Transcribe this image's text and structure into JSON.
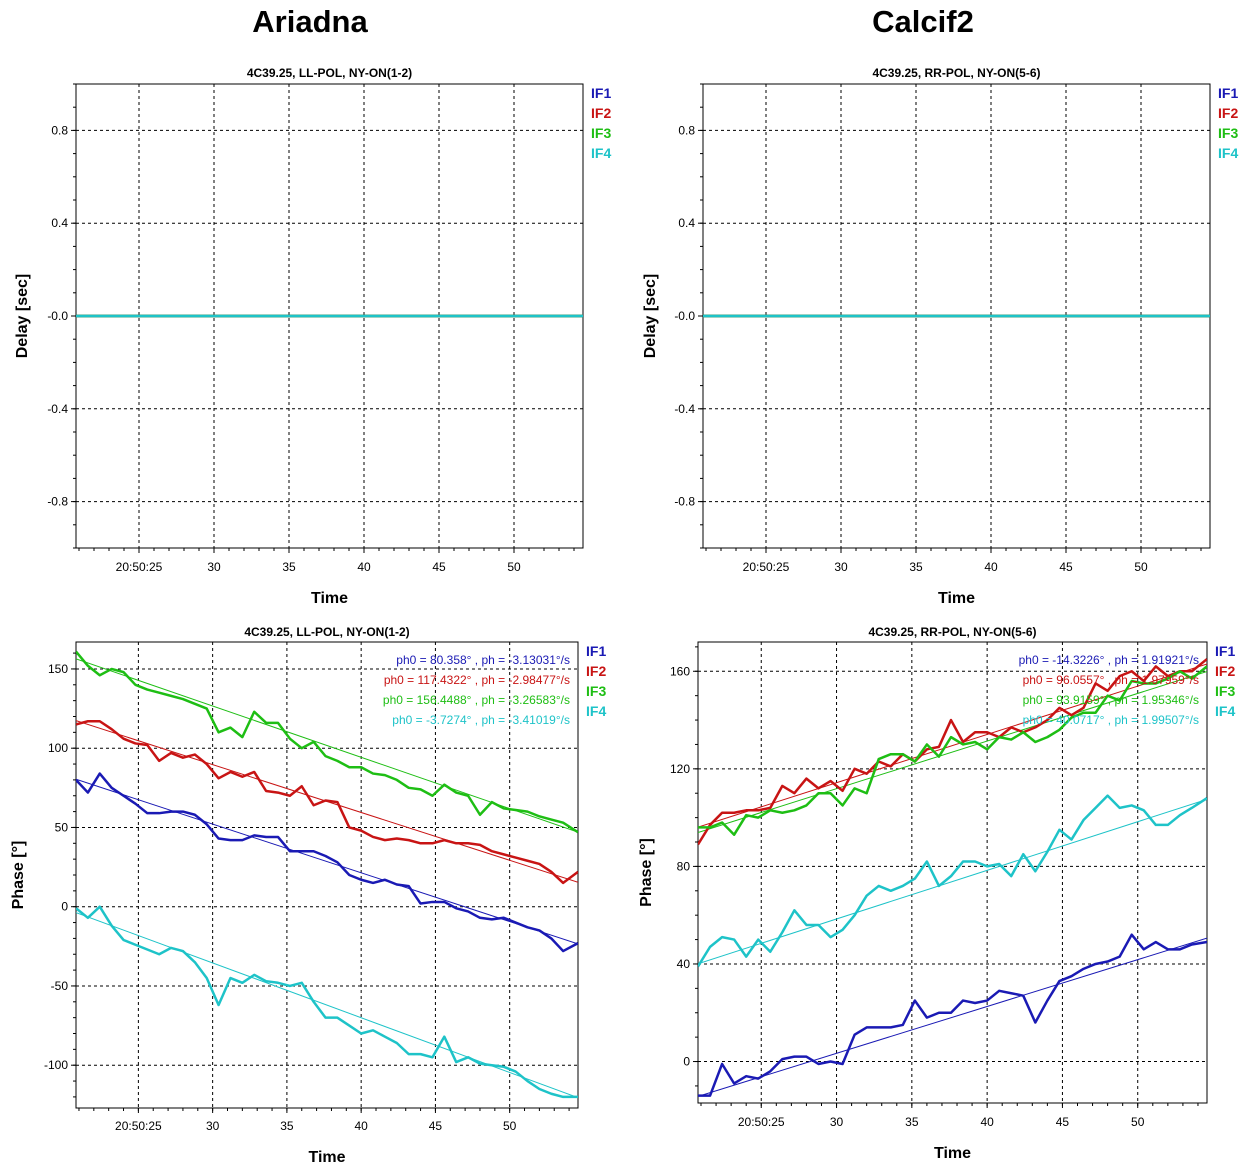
{
  "columns": [
    "Ariadna",
    "Calcif2"
  ],
  "colors": {
    "IF1": "#1a1ab4",
    "IF2": "#c81414",
    "IF3": "#1ebe14",
    "IF4": "#1ec3c8",
    "grid": "#000000"
  },
  "chart_data": [
    {
      "type": "line",
      "title": "4C39.25, LL-POL,  NY-ON(1-2)",
      "xlabel": "Time",
      "ylabel": "Delay [sec]",
      "xlim": [
        20.8,
        54.6
      ],
      "ylim": [
        -1.0,
        1.0
      ],
      "x_ticks": [
        25,
        30,
        35,
        40,
        45,
        50
      ],
      "x_tick_labels": [
        "20:50:25",
        "30",
        "35",
        "40",
        "45",
        "50"
      ],
      "y_ticks": [
        0.8,
        0.4,
        0.0,
        -0.4,
        -0.8
      ],
      "y_tick_labels": [
        "0.8",
        "0.4",
        "-0.0",
        "-0.4",
        "-0.8"
      ],
      "legend": [
        "IF1",
        "IF2",
        "IF3",
        "IF4"
      ],
      "fit_labels": [],
      "series": [
        {
          "name": "IF1",
          "x": [
            20.8,
            54.6
          ],
          "y": [
            0.0,
            0.0
          ]
        },
        {
          "name": "IF2",
          "x": [
            20.8,
            54.6
          ],
          "y": [
            0.0,
            0.0
          ]
        },
        {
          "name": "IF3",
          "x": [
            20.8,
            54.6
          ],
          "y": [
            0.0,
            0.0
          ]
        },
        {
          "name": "IF4",
          "x": [
            20.8,
            54.6
          ],
          "y": [
            0.0,
            0.0
          ]
        }
      ],
      "fits": []
    },
    {
      "type": "line",
      "title": "4C39.25, RR-POL,  NY-ON(5-6)",
      "xlabel": "Time",
      "ylabel": "Delay [sec]",
      "xlim": [
        20.8,
        54.6
      ],
      "ylim": [
        -1.0,
        1.0
      ],
      "x_ticks": [
        25,
        30,
        35,
        40,
        45,
        50
      ],
      "x_tick_labels": [
        "20:50:25",
        "30",
        "35",
        "40",
        "45",
        "50"
      ],
      "y_ticks": [
        0.8,
        0.4,
        0.0,
        -0.4,
        -0.8
      ],
      "y_tick_labels": [
        "0.8",
        "0.4",
        "-0.0",
        "-0.4",
        "-0.8"
      ],
      "legend": [
        "IF1",
        "IF2",
        "IF3",
        "IF4"
      ],
      "fit_labels": [],
      "series": [
        {
          "name": "IF1",
          "x": [
            20.8,
            54.6
          ],
          "y": [
            0.0,
            0.0
          ]
        },
        {
          "name": "IF2",
          "x": [
            20.8,
            54.6
          ],
          "y": [
            0.0,
            0.0
          ]
        },
        {
          "name": "IF3",
          "x": [
            20.8,
            54.6
          ],
          "y": [
            0.0,
            0.0
          ]
        },
        {
          "name": "IF4",
          "x": [
            20.8,
            54.6
          ],
          "y": [
            0.0,
            0.0
          ]
        }
      ],
      "fits": []
    },
    {
      "type": "line",
      "title": "4C39.25, LL-POL,  NY-ON(1-2)",
      "xlabel": "Time",
      "ylabel": "Phase [°]",
      "xlim": [
        20.8,
        54.6
      ],
      "ylim": [
        -127,
        167
      ],
      "x_ticks": [
        25,
        30,
        35,
        40,
        45,
        50
      ],
      "x_tick_labels": [
        "20:50:25",
        "30",
        "35",
        "40",
        "45",
        "50"
      ],
      "y_ticks": [
        150,
        100,
        50,
        0,
        -50,
        -100
      ],
      "y_tick_labels": [
        "150",
        "100",
        "50",
        "0",
        "-50",
        "-100"
      ],
      "legend": [
        "IF1",
        "IF2",
        "IF3",
        "IF4"
      ],
      "fit_labels": [
        "ph0 = 80.358° , ph = -3.13031°/s",
        "ph0 = 117.4322° , ph = -2.98477°/s",
        "ph0 = 156.4488° , ph = -3.26583°/s",
        "ph0 = -3.7274° , ph = -3.41019°/s"
      ],
      "series": [
        {
          "name": "IF1",
          "x": [
            20.8,
            21.6,
            22.4,
            23.2,
            24.0,
            24.8,
            25.6,
            26.4,
            27.2,
            28.0,
            28.8,
            29.6,
            30.4,
            31.2,
            32.0,
            32.8,
            33.6,
            34.4,
            35.2,
            36.0,
            36.8,
            37.6,
            38.4,
            39.2,
            40.0,
            40.8,
            41.6,
            42.4,
            43.2,
            44.0,
            44.8,
            45.6,
            46.4,
            47.2,
            48.0,
            48.8,
            49.6,
            50.4,
            51.2,
            52.0,
            52.8,
            53.6,
            54.6
          ],
          "y": [
            80,
            72,
            84,
            75,
            70,
            65,
            59,
            59,
            60,
            60,
            58,
            52,
            43,
            42,
            42,
            45,
            44,
            44,
            35,
            35,
            35,
            32,
            28,
            20,
            17,
            15,
            17,
            14,
            13,
            2,
            3,
            3,
            -1,
            -3,
            -7,
            -8,
            -7,
            -10,
            -13,
            -15,
            -20,
            -28,
            -23
          ]
        },
        {
          "name": "IF2",
          "x": [
            20.8,
            21.6,
            22.4,
            23.2,
            24.0,
            24.8,
            25.6,
            26.4,
            27.2,
            28.0,
            28.8,
            29.6,
            30.4,
            31.2,
            32.0,
            32.8,
            33.6,
            34.4,
            35.2,
            36.0,
            36.8,
            37.6,
            38.4,
            39.2,
            40.0,
            40.8,
            41.6,
            42.4,
            43.2,
            44.0,
            44.8,
            45.6,
            46.4,
            47.2,
            48.0,
            48.8,
            49.6,
            50.4,
            51.2,
            52.0,
            52.8,
            53.6,
            54.6
          ],
          "y": [
            115,
            117,
            117,
            112,
            106,
            103,
            102,
            92,
            97,
            94,
            96,
            90,
            81,
            85,
            82,
            85,
            73,
            72,
            70,
            76,
            64,
            67,
            66,
            50,
            48,
            44,
            42,
            43,
            42,
            40,
            40,
            42,
            40,
            40,
            39,
            35,
            33,
            31,
            29,
            27,
            22,
            15,
            22
          ]
        },
        {
          "name": "IF3",
          "x": [
            20.8,
            21.6,
            22.4,
            23.2,
            24.0,
            24.8,
            25.6,
            26.4,
            27.2,
            28.0,
            28.8,
            29.6,
            30.4,
            31.2,
            32.0,
            32.8,
            33.6,
            34.4,
            35.2,
            36.0,
            36.8,
            37.6,
            38.4,
            39.2,
            40.0,
            40.8,
            41.6,
            42.4,
            43.2,
            44.0,
            44.8,
            45.6,
            46.4,
            47.2,
            48.0,
            48.8,
            49.6,
            50.4,
            51.2,
            52.0,
            52.8,
            53.6,
            54.6
          ],
          "y": [
            161,
            152,
            146,
            150,
            148,
            140,
            137,
            135,
            133,
            131,
            128,
            125,
            110,
            113,
            107,
            123,
            116,
            116,
            106,
            100,
            104,
            95,
            92,
            88,
            88,
            84,
            83,
            80,
            75,
            74,
            70,
            77,
            72,
            70,
            58,
            66,
            62,
            61,
            60,
            57,
            55,
            53,
            47
          ]
        },
        {
          "name": "IF4",
          "x": [
            20.8,
            21.6,
            22.4,
            23.2,
            24.0,
            24.8,
            25.6,
            26.4,
            27.2,
            28.0,
            28.8,
            29.6,
            30.4,
            31.2,
            32.0,
            32.8,
            33.6,
            34.4,
            35.2,
            36.0,
            36.8,
            37.6,
            38.4,
            39.2,
            40.0,
            40.8,
            41.6,
            42.4,
            43.2,
            44.0,
            44.8,
            45.6,
            46.4,
            47.2,
            48.0,
            48.8,
            49.6,
            50.4,
            51.2,
            52.0,
            52.8,
            53.6,
            54.6
          ],
          "y": [
            -1,
            -7,
            0,
            -12,
            -21,
            -24,
            -27,
            -30,
            -26,
            -28,
            -35,
            -45,
            -62,
            -45,
            -48,
            -43,
            -47,
            -48,
            -50,
            -48,
            -60,
            -70,
            -70,
            -75,
            -80,
            -78,
            -82,
            -86,
            -93,
            -93,
            -95,
            -82,
            -98,
            -95,
            -99,
            -100,
            -101,
            -104,
            -110,
            -115,
            -118,
            -120,
            -120
          ]
        }
      ],
      "fits": [
        {
          "name": "IF1",
          "x": [
            20.8,
            54.6
          ],
          "y": [
            80.4,
            -23.5
          ]
        },
        {
          "name": "IF2",
          "x": [
            20.8,
            54.6
          ],
          "y": [
            117.4,
            15.4
          ]
        },
        {
          "name": "IF3",
          "x": [
            20.8,
            54.6
          ],
          "y": [
            156.4,
            47.0
          ]
        },
        {
          "name": "IF4",
          "x": [
            20.8,
            54.6
          ],
          "y": [
            -3.7,
            -120.5
          ]
        }
      ]
    },
    {
      "type": "line",
      "title": "4C39.25, RR-POL,  NY-ON(5-6)",
      "xlabel": "Time",
      "ylabel": "Phase [°]",
      "xlim": [
        20.8,
        54.6
      ],
      "ylim": [
        -17,
        172
      ],
      "x_ticks": [
        25,
        30,
        35,
        40,
        45,
        50
      ],
      "x_tick_labels": [
        "20:50:25",
        "30",
        "35",
        "40",
        "45",
        "50"
      ],
      "y_ticks": [
        160,
        120,
        80,
        40,
        0
      ],
      "y_tick_labels": [
        "160",
        "120",
        "80",
        "40",
        "0"
      ],
      "legend": [
        "IF1",
        "IF2",
        "IF3",
        "IF4"
      ],
      "fit_labels": [
        "ph0 = -14.3226° , ph = 1.91921°/s",
        "ph0 = 96.0557° , ph = 1.97959°/s",
        "ph0 = 93.9159° , ph = 1.95346°/s",
        "ph0 = 40.0717° , ph = 1.99507°/s"
      ],
      "series": [
        {
          "name": "IF1",
          "x": [
            20.8,
            21.6,
            22.4,
            23.2,
            24.0,
            24.8,
            25.6,
            26.4,
            27.2,
            28.0,
            28.8,
            29.6,
            30.4,
            31.2,
            32.0,
            32.8,
            33.6,
            34.4,
            35.2,
            36.0,
            36.8,
            37.6,
            38.4,
            39.2,
            40.0,
            40.8,
            41.6,
            42.4,
            43.2,
            44.0,
            44.8,
            45.6,
            46.4,
            47.2,
            48.0,
            48.8,
            49.6,
            50.4,
            51.2,
            52.0,
            52.8,
            53.6,
            54.6
          ],
          "y": [
            -14,
            -14,
            -1,
            -9,
            -6,
            -7,
            -4,
            1,
            2,
            2,
            -1,
            0,
            -1,
            11,
            14,
            14,
            14,
            15,
            25,
            18,
            20,
            20,
            25,
            24,
            25,
            29,
            28,
            27,
            16,
            25,
            33,
            35,
            38,
            40,
            41,
            43,
            52,
            46,
            49,
            46,
            46,
            48,
            49
          ]
        },
        {
          "name": "IF2",
          "x": [
            20.8,
            21.6,
            22.4,
            23.2,
            24.0,
            24.8,
            25.6,
            26.4,
            27.2,
            28.0,
            28.8,
            29.6,
            30.4,
            31.2,
            32.0,
            32.8,
            33.6,
            34.4,
            35.2,
            36.0,
            36.8,
            37.6,
            38.4,
            39.2,
            40.0,
            40.8,
            41.6,
            42.4,
            43.2,
            44.0,
            44.8,
            45.6,
            46.4,
            47.2,
            48.0,
            48.8,
            49.6,
            50.4,
            51.2,
            52.0,
            52.8,
            53.6,
            54.6
          ],
          "y": [
            89,
            97,
            102,
            102,
            103,
            103,
            104,
            113,
            110,
            116,
            112,
            115,
            111,
            120,
            118,
            123,
            121,
            126,
            123,
            128,
            129,
            140,
            131,
            135,
            135,
            133,
            137,
            135,
            137,
            140,
            145,
            142,
            145,
            155,
            152,
            158,
            160,
            156,
            162,
            158,
            160,
            160,
            165
          ]
        },
        {
          "name": "IF3",
          "x": [
            20.8,
            21.6,
            22.4,
            23.2,
            24.0,
            24.8,
            25.6,
            26.4,
            27.2,
            28.0,
            28.8,
            29.6,
            30.4,
            31.2,
            32.0,
            32.8,
            33.6,
            34.4,
            35.2,
            36.0,
            36.8,
            37.6,
            38.4,
            39.2,
            40.0,
            40.8,
            41.6,
            42.4,
            43.2,
            44.0,
            44.8,
            45.6,
            46.4,
            47.2,
            48.0,
            48.8,
            49.6,
            50.4,
            51.2,
            52.0,
            52.8,
            53.6,
            54.6
          ],
          "y": [
            96,
            96,
            98,
            93,
            101,
            100,
            103,
            102,
            103,
            105,
            110,
            110,
            105,
            112,
            110,
            124,
            126,
            126,
            123,
            130,
            125,
            133,
            130,
            131,
            128,
            133,
            132,
            135,
            131,
            133,
            136,
            141,
            143,
            143,
            150,
            148,
            156,
            155,
            155,
            157,
            160,
            157,
            162
          ]
        },
        {
          "name": "IF4",
          "x": [
            20.8,
            21.6,
            22.4,
            23.2,
            24.0,
            24.8,
            25.6,
            26.4,
            27.2,
            28.0,
            28.8,
            29.6,
            30.4,
            31.2,
            32.0,
            32.8,
            33.6,
            34.4,
            35.2,
            36.0,
            36.8,
            37.6,
            38.4,
            39.2,
            40.0,
            40.8,
            41.6,
            42.4,
            43.2,
            44.0,
            44.8,
            45.6,
            46.4,
            47.2,
            48.0,
            48.8,
            49.6,
            50.4,
            51.2,
            52.0,
            52.8,
            53.6,
            54.6
          ],
          "y": [
            39,
            47,
            51,
            50,
            43,
            50,
            45,
            53,
            62,
            56,
            56,
            51,
            54,
            60,
            68,
            72,
            70,
            72,
            75,
            82,
            72,
            76,
            82,
            82,
            80,
            81,
            76,
            85,
            78,
            86,
            95,
            91,
            99,
            104,
            109,
            104,
            105,
            103,
            97,
            97,
            101,
            104,
            108
          ]
        }
      ],
      "fits": [
        {
          "name": "IF1",
          "x": [
            20.8,
            54.6
          ],
          "y": [
            -14.3,
            50.6
          ]
        },
        {
          "name": "IF2",
          "x": [
            20.8,
            54.6
          ],
          "y": [
            96.1,
            163.0
          ]
        },
        {
          "name": "IF3",
          "x": [
            20.8,
            54.6
          ],
          "y": [
            93.9,
            159.9
          ]
        },
        {
          "name": "IF4",
          "x": [
            20.8,
            54.6
          ],
          "y": [
            40.1,
            107.5
          ]
        }
      ]
    }
  ]
}
